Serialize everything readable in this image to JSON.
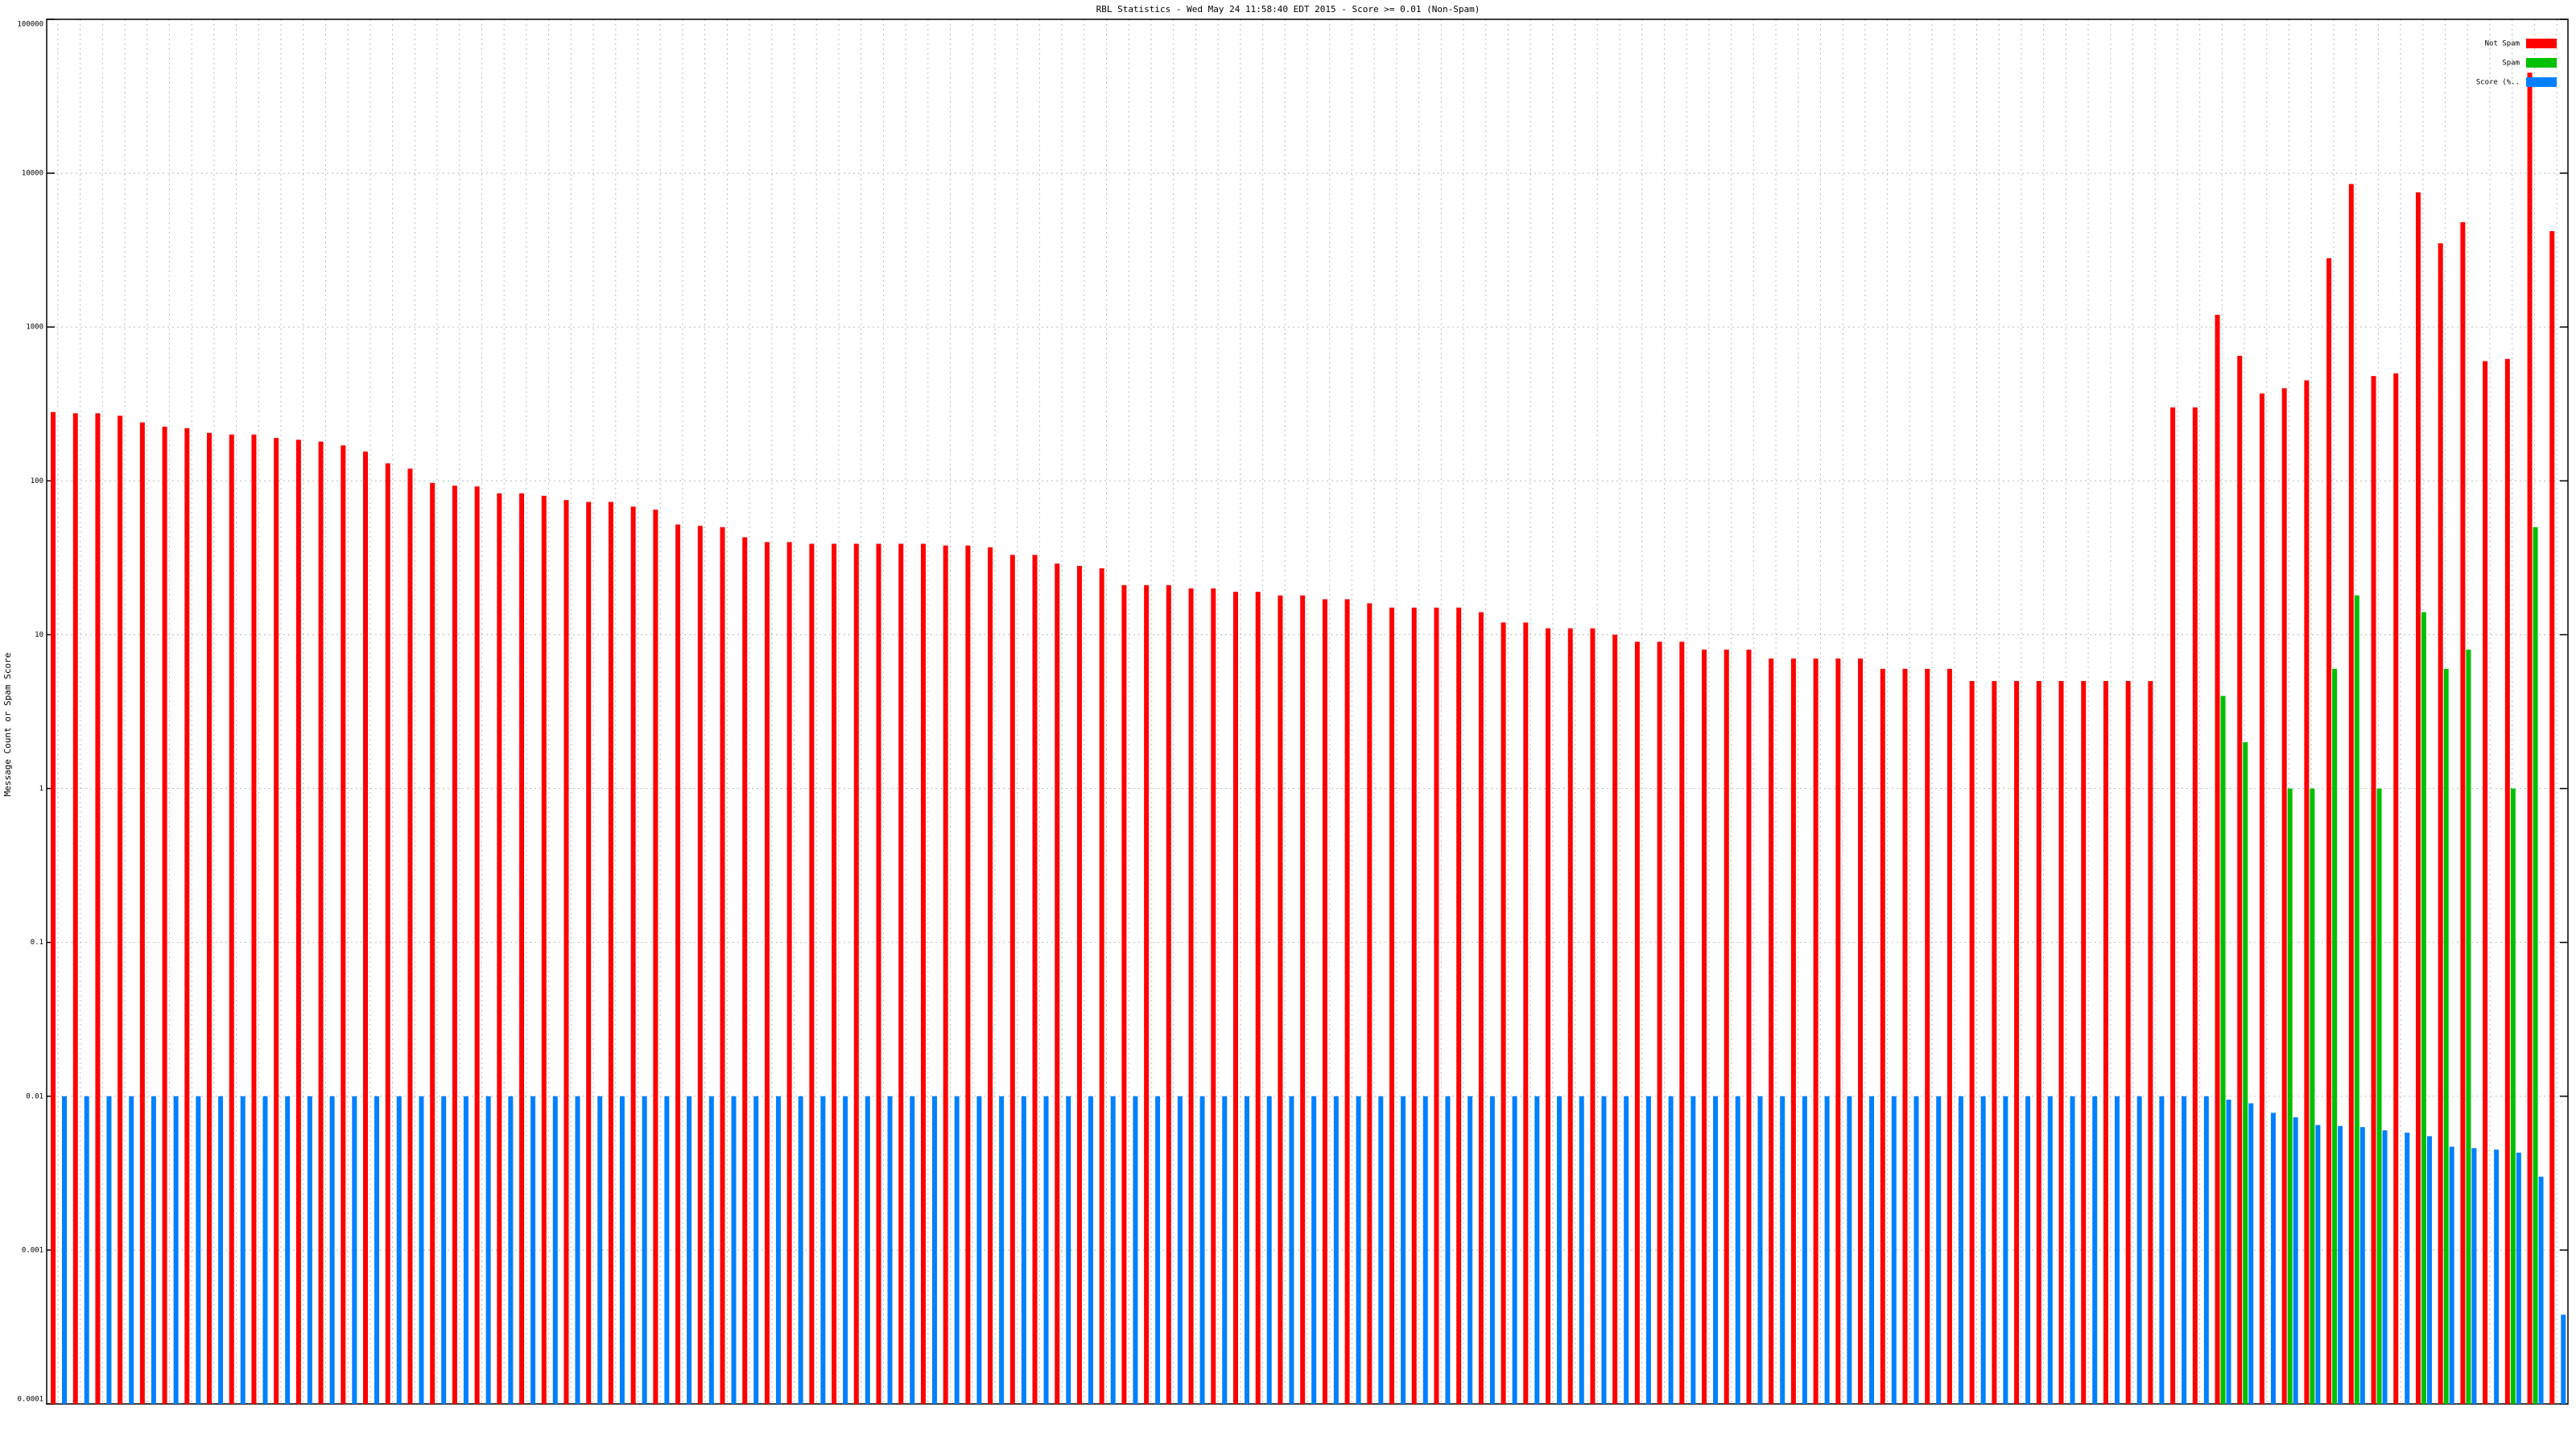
{
  "chart_data": {
    "type": "bar",
    "title": "RBL Statistics - Wed May 24 11:58:40 EDT 2015 - Score >= 0.01 (Non-Spam)",
    "y_label": "Message Count or Spam Score",
    "log_scale": true,
    "grid": true,
    "legend": "top-right",
    "ylim": [
      0.0001,
      100000
    ],
    "yticks": [
      0.0001,
      0.001,
      0.01,
      0.1,
      1,
      10,
      100,
      1000,
      10000,
      100000
    ],
    "categories": [
      null,
      null,
      null,
      null,
      null,
      null,
      null,
      null,
      null,
      null,
      null,
      null,
      null,
      null,
      null,
      null,
      null,
      null,
      null,
      null,
      null,
      null,
      null,
      null,
      null,
      null,
      null,
      null,
      null,
      null,
      null,
      null,
      null,
      null,
      null,
      null,
      null,
      null,
      null,
      null,
      null,
      null,
      null,
      null,
      null,
      null,
      null,
      null,
      null,
      null,
      null,
      null,
      null,
      null,
      null,
      null,
      null,
      null,
      null,
      null,
      null,
      null,
      null,
      null,
      null,
      null,
      null,
      null,
      null,
      null,
      null,
      null,
      null,
      null,
      null,
      null,
      null,
      null,
      null,
      null,
      null,
      null,
      null,
      null,
      null,
      null,
      null,
      null,
      null,
      null,
      null,
      null,
      null,
      null,
      null,
      null,
      null,
      null,
      null,
      null,
      null,
      null,
      null,
      null,
      null,
      null,
      null,
      null,
      null,
      null,
      null,
      null,
      null
    ],
    "series": [
      {
        "name": "Not Spam",
        "color": "#ff0000",
        "values": [
          280,
          275,
          275,
          265,
          240,
          225,
          220,
          205,
          200,
          200,
          190,
          185,
          180,
          170,
          155,
          130,
          120,
          97,
          93,
          92,
          83,
          83,
          80,
          75,
          73,
          73,
          68,
          65,
          52,
          51,
          50,
          43,
          40,
          40,
          39,
          39,
          39,
          39,
          39,
          39,
          38,
          38,
          37,
          33,
          33,
          29,
          28,
          27,
          21,
          21,
          21,
          20,
          20,
          19,
          19,
          18,
          18,
          17,
          17,
          16,
          15,
          15,
          15,
          15,
          14,
          12,
          12,
          11,
          11,
          11,
          10,
          9,
          9,
          9,
          8,
          8,
          8,
          7,
          7,
          7,
          7,
          7,
          6,
          6,
          6,
          6,
          5,
          5,
          5,
          5,
          5,
          5,
          5,
          5,
          5,
          300,
          300,
          1200,
          650,
          370,
          400,
          450,
          2800,
          8500,
          480,
          500,
          7500,
          3500,
          4800,
          600,
          620,
          45000,
          4200
        ]
      },
      {
        "name": "Spam",
        "color": "#00c000",
        "values": [
          null,
          null,
          null,
          null,
          null,
          null,
          null,
          null,
          null,
          null,
          null,
          null,
          null,
          null,
          null,
          null,
          null,
          null,
          null,
          null,
          null,
          null,
          null,
          null,
          null,
          null,
          null,
          null,
          null,
          null,
          null,
          null,
          null,
          null,
          null,
          null,
          null,
          null,
          null,
          null,
          null,
          null,
          null,
          null,
          null,
          null,
          null,
          null,
          null,
          null,
          null,
          null,
          null,
          null,
          null,
          null,
          null,
          null,
          null,
          null,
          null,
          null,
          null,
          null,
          null,
          null,
          null,
          null,
          null,
          null,
          null,
          null,
          null,
          null,
          null,
          null,
          null,
          null,
          null,
          null,
          null,
          null,
          null,
          null,
          null,
          null,
          null,
          null,
          null,
          null,
          null,
          null,
          null,
          null,
          null,
          null,
          null,
          4,
          2,
          null,
          1,
          1,
          6,
          18,
          1,
          null,
          14,
          6,
          8,
          null,
          1,
          50,
          null
        ]
      },
      {
        "name": "Score (%..",
        "color": "#0080ff",
        "values": [
          0.01,
          0.01,
          0.01,
          0.01,
          0.01,
          0.01,
          0.01,
          0.01,
          0.01,
          0.01,
          0.01,
          0.01,
          0.01,
          0.01,
          0.01,
          0.01,
          0.01,
          0.01,
          0.01,
          0.01,
          0.01,
          0.01,
          0.01,
          0.01,
          0.01,
          0.01,
          0.01,
          0.01,
          0.01,
          0.01,
          0.01,
          0.01,
          0.01,
          0.01,
          0.01,
          0.01,
          0.01,
          0.01,
          0.01,
          0.01,
          0.01,
          0.01,
          0.01,
          0.01,
          0.01,
          0.01,
          0.01,
          0.01,
          0.01,
          0.01,
          0.01,
          0.01,
          0.01,
          0.01,
          0.01,
          0.01,
          0.01,
          0.01,
          0.01,
          0.01,
          0.01,
          0.01,
          0.01,
          0.01,
          0.01,
          0.01,
          0.01,
          0.01,
          0.01,
          0.01,
          0.01,
          0.01,
          0.01,
          0.01,
          0.01,
          0.01,
          0.01,
          0.01,
          0.01,
          0.01,
          0.01,
          0.01,
          0.01,
          0.01,
          0.01,
          0.01,
          0.01,
          0.01,
          0.01,
          0.01,
          0.01,
          0.01,
          0.01,
          0.01,
          0.01,
          0.01,
          0.01,
          0.0095,
          0.009,
          0.0078,
          0.0073,
          0.0065,
          0.0064,
          0.0063,
          0.006,
          0.0058,
          0.0055,
          0.0047,
          0.0046,
          0.0045,
          0.0043,
          0.003,
          0.00038
        ]
      }
    ]
  }
}
